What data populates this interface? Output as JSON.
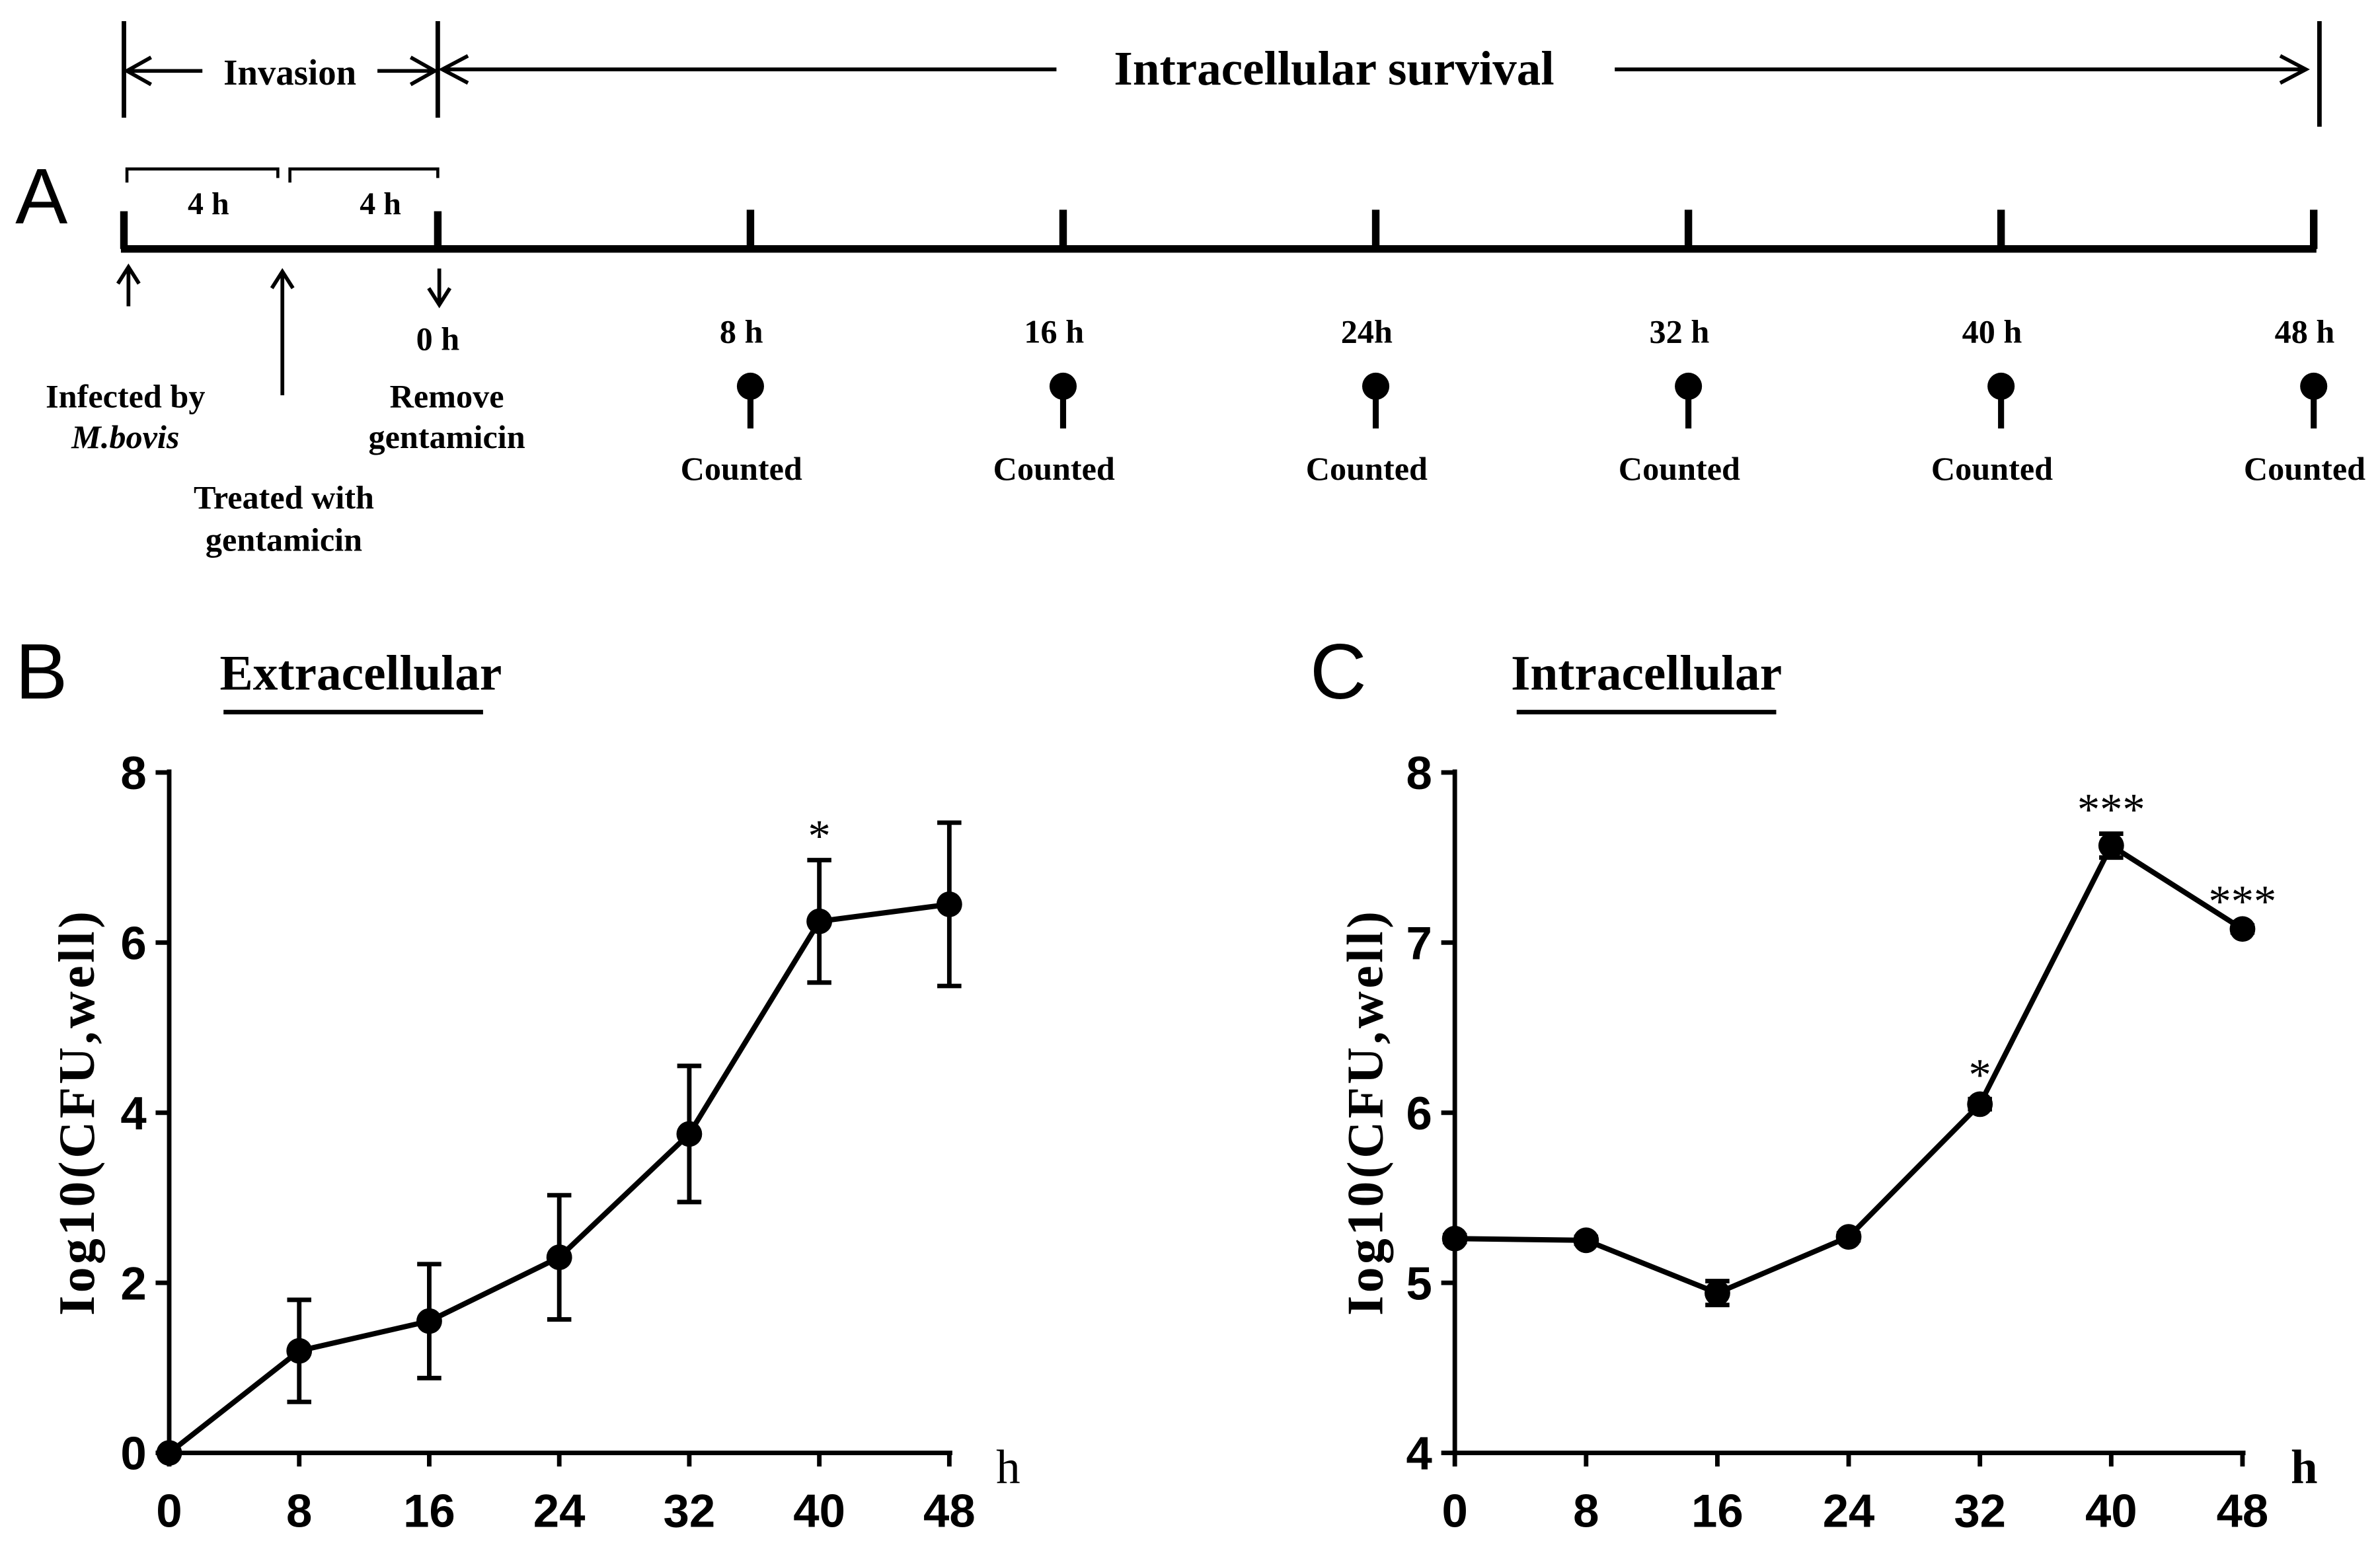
{
  "panel_a": {
    "label": "A",
    "invasion_label": "Invasion",
    "survival_label": "Intracellular survival",
    "bracket_1": "4 h",
    "bracket_2": "4 h",
    "zero_label": "0 h",
    "infected_line1": "Infected by",
    "infected_line2": "M.bovis",
    "treated_line1": "Treated with",
    "treated_line2": "gentamicin",
    "remove_line1": "Remove",
    "remove_line2": "gentamicin",
    "timepoints": [
      {
        "hours": 8,
        "label": "8 h",
        "status": "Counted"
      },
      {
        "hours": 16,
        "label": "16 h",
        "status": "Counted"
      },
      {
        "hours": 24,
        "label": "24h",
        "status": "Counted"
      },
      {
        "hours": 32,
        "label": "32 h",
        "status": "Counted"
      },
      {
        "hours": 40,
        "label": "40 h",
        "status": "Counted"
      },
      {
        "hours": 48,
        "label": "48 h",
        "status": "Counted"
      }
    ]
  },
  "chart_data": [
    {
      "panel_label": "B",
      "type": "line",
      "title": "Extracellular",
      "xlabel": "h",
      "ylabel": "Iog10(CFU,well)",
      "x": [
        0,
        8,
        16,
        24,
        32,
        40,
        48
      ],
      "xlim": [
        0,
        48
      ],
      "ylim": [
        0,
        8
      ],
      "yticks": [
        0,
        2,
        4,
        6,
        8
      ],
      "series": [
        {
          "values": [
            0,
            1.2,
            1.55,
            2.3,
            3.75,
            6.25,
            6.45
          ],
          "errors": [
            0,
            0.6,
            0.67,
            0.73,
            0.8,
            0.72,
            0.96
          ]
        }
      ],
      "annotations": [
        {
          "x": 40,
          "text": "*"
        }
      ]
    },
    {
      "panel_label": "C",
      "type": "line",
      "title": "Intracellular",
      "xlabel": "h",
      "ylabel": "Iog10(CFU,well)",
      "x": [
        0,
        8,
        16,
        24,
        32,
        40,
        48
      ],
      "xlim": [
        0,
        48
      ],
      "ylim": [
        4,
        8
      ],
      "yticks": [
        4,
        5,
        6,
        7,
        8
      ],
      "series": [
        {
          "values": [
            5.26,
            5.25,
            4.94,
            5.27,
            6.05,
            7.57,
            7.08
          ],
          "errors": [
            0.02,
            0.02,
            0.07,
            0.02,
            0.03,
            0.07,
            0.02
          ]
        }
      ],
      "annotations": [
        {
          "x": 32,
          "text": "*"
        },
        {
          "x": 40,
          "text": "***"
        },
        {
          "x": 48,
          "text": "***"
        }
      ]
    }
  ]
}
